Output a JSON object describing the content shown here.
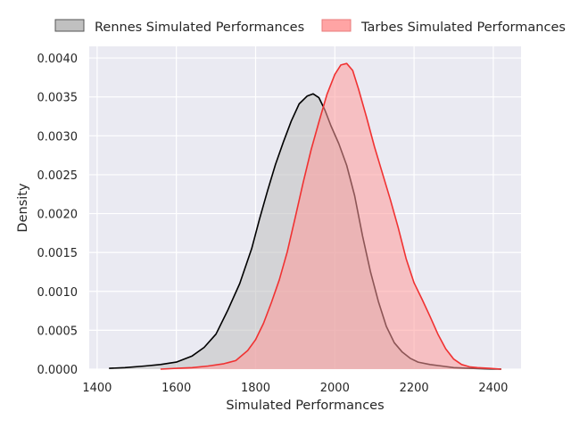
{
  "chart_data": {
    "type": "area",
    "title": "",
    "xlabel": "Simulated Performances",
    "ylabel": "Density",
    "xlim": [
      1380,
      2470
    ],
    "ylim": [
      0,
      0.00415
    ],
    "x_ticks": [
      1400,
      1600,
      1800,
      2000,
      2200,
      2400
    ],
    "x_tick_labels": [
      "1400",
      "1600",
      "1800",
      "2000",
      "2200",
      "2400"
    ],
    "y_ticks": [
      0,
      0.0005,
      0.001,
      0.0015,
      0.002,
      0.0025,
      0.003,
      0.0035,
      0.004
    ],
    "y_tick_labels": [
      "0.0000",
      "0.0005",
      "0.0010",
      "0.0015",
      "0.0020",
      "0.0025",
      "0.0030",
      "0.0035",
      "0.0040"
    ],
    "grid": true,
    "legend_position": "top-center, outside plot",
    "series": [
      {
        "name": "Rennes Simulated Performances",
        "line_color": "#000000",
        "fill_color": "#c0c0c0",
        "x": [
          1430,
          1470,
          1520,
          1560,
          1600,
          1640,
          1670,
          1700,
          1730,
          1760,
          1790,
          1810,
          1830,
          1850,
          1870,
          1890,
          1910,
          1930,
          1945,
          1960,
          1975,
          1990,
          2010,
          2030,
          2050,
          2070,
          2090,
          2110,
          2130,
          2150,
          2170,
          2190,
          2210,
          2240,
          2270,
          2300,
          2340,
          2380,
          2420
        ],
        "y": [
          1e-05,
          2e-05,
          4e-05,
          6e-05,
          9e-05,
          0.00017,
          0.00028,
          0.00045,
          0.00076,
          0.0011,
          0.00155,
          0.00193,
          0.00229,
          0.00263,
          0.00292,
          0.00319,
          0.00341,
          0.00351,
          0.00354,
          0.00349,
          0.00333,
          0.00313,
          0.0029,
          0.00262,
          0.00223,
          0.00171,
          0.00125,
          0.00087,
          0.00055,
          0.00034,
          0.00022,
          0.00014,
          9e-05,
          6e-05,
          4e-05,
          2e-05,
          1e-05,
          5e-06,
          0.0
        ]
      },
      {
        "name": "Tarbes Simulated Performances",
        "line_color": "#f03232",
        "fill_color": "#ff9a9a",
        "x": [
          1560,
          1600,
          1640,
          1680,
          1720,
          1750,
          1780,
          1800,
          1820,
          1840,
          1860,
          1880,
          1900,
          1920,
          1940,
          1960,
          1980,
          2000,
          2015,
          2030,
          2045,
          2060,
          2080,
          2100,
          2120,
          2140,
          2160,
          2180,
          2200,
          2220,
          2240,
          2260,
          2280,
          2300,
          2320,
          2340,
          2360,
          2390,
          2420
        ],
        "y": [
          0.0,
          1e-05,
          2e-05,
          4e-05,
          7e-05,
          0.00011,
          0.00024,
          0.00038,
          0.00059,
          0.00086,
          0.00115,
          0.00151,
          0.00195,
          0.0024,
          0.00282,
          0.00318,
          0.00353,
          0.00379,
          0.00391,
          0.00393,
          0.00384,
          0.0036,
          0.00324,
          0.00286,
          0.00252,
          0.00218,
          0.00182,
          0.00142,
          0.00111,
          0.0009,
          0.00068,
          0.00045,
          0.00026,
          0.00013,
          6e-05,
          3e-05,
          2e-05,
          1e-05,
          0.0
        ]
      }
    ]
  }
}
